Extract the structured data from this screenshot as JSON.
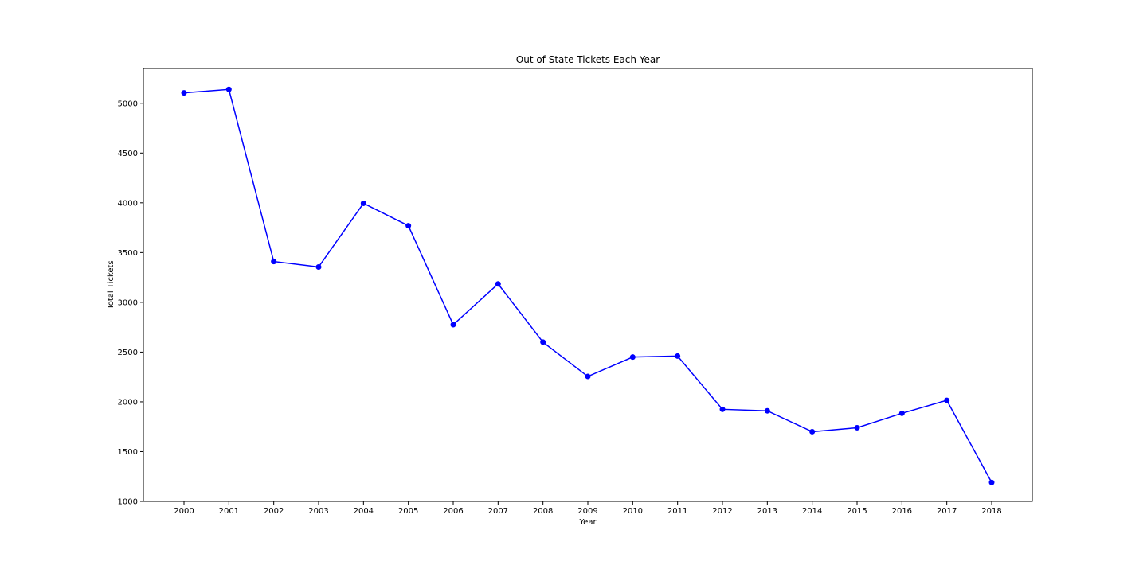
{
  "chart_data": {
    "type": "line",
    "title": "Out of State Tickets Each Year",
    "xlabel": "Year",
    "ylabel": "Total Tickets",
    "x": [
      "2000",
      "2001",
      "2002",
      "2003",
      "2004",
      "2005",
      "2006",
      "2007",
      "2008",
      "2009",
      "2010",
      "2011",
      "2012",
      "2013",
      "2014",
      "2015",
      "2016",
      "2017",
      "2018"
    ],
    "series": [
      {
        "values": [
          5105,
          5140,
          3410,
          3355,
          3995,
          3770,
          2775,
          3185,
          2600,
          2255,
          2450,
          2460,
          1925,
          1910,
          1700,
          1740,
          1885,
          2015,
          1190
        ]
      }
    ],
    "ylim": [
      1000,
      5350
    ],
    "yticks": [
      "1000",
      "1500",
      "2000",
      "2500",
      "3000",
      "3500",
      "4000",
      "4500",
      "5000"
    ],
    "grid": false,
    "legend": "none",
    "line_color": "#0000ff",
    "marker": "circle"
  }
}
